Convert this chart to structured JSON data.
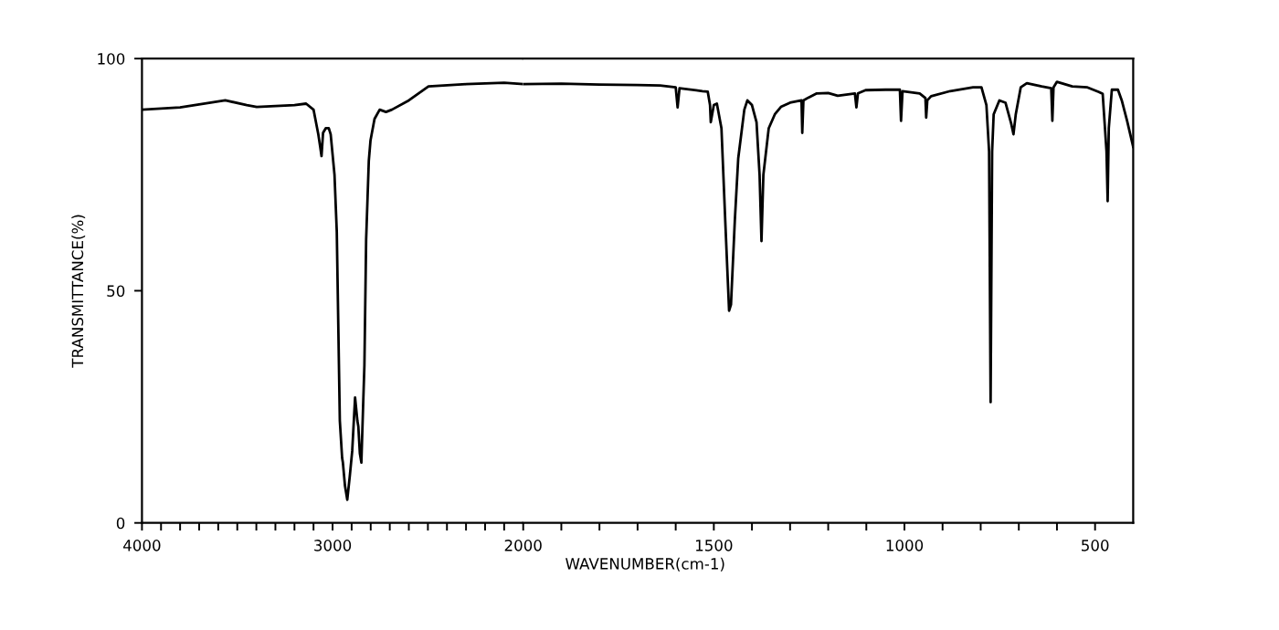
{
  "chart_data": [
    {
      "type": "line",
      "ylabel": "TRANSMITTANCE(%)",
      "xlim": [
        4000,
        2000
      ],
      "ylim": [
        0,
        100
      ],
      "yticks": [
        0,
        50,
        100
      ],
      "xticks": [
        4000,
        {
          "value": 3900,
          "label": null
        },
        {
          "value": 3800,
          "label": null
        },
        {
          "value": 3700,
          "label": null
        },
        {
          "value": 3600,
          "label": null
        },
        {
          "value": 3500,
          "label": null
        },
        {
          "value": 3400,
          "label": null
        },
        {
          "value": 3300,
          "label": null
        },
        {
          "value": 3200,
          "label": null
        },
        {
          "value": 3100,
          "label": null
        },
        3000,
        {
          "value": 2900,
          "label": null
        },
        {
          "value": 2800,
          "label": null
        },
        {
          "value": 2700,
          "label": null
        },
        {
          "value": 2600,
          "label": null
        },
        {
          "value": 2500,
          "label": null
        },
        {
          "value": 2400,
          "label": null
        },
        {
          "value": 2300,
          "label": null
        },
        {
          "value": 2200,
          "label": null
        },
        {
          "value": 2100,
          "label": null
        }
      ],
      "grid": false,
      "marker": "none",
      "line_style": "solid",
      "series": [
        {
          "color": "#000000",
          "x": [
            4000,
            3800,
            3563,
            3450,
            3398,
            3200,
            3139,
            3100,
            3075,
            3065,
            3058,
            3050,
            3036,
            3020,
            3010,
            2990,
            2978,
            2962,
            2950,
            2946,
            2935,
            2923,
            2910,
            2897,
            2882,
            2870,
            2865,
            2857,
            2849,
            2840,
            2833,
            2824,
            2810,
            2801,
            2780,
            2753,
            2720,
            2689,
            2600,
            2497,
            2300,
            2100,
            2000
          ],
          "values": [
            89,
            89.5,
            91,
            90,
            89.6,
            90,
            90.3,
            89,
            83.7,
            81,
            79,
            84,
            85,
            85,
            83.7,
            75,
            62.7,
            22,
            14,
            13,
            8,
            5,
            10,
            15.5,
            27,
            22,
            20.8,
            15,
            13,
            25,
            34,
            61,
            78,
            82.4,
            87,
            89,
            88.5,
            89,
            91,
            94,
            94.5,
            94.8,
            94.5
          ]
        }
      ]
    },
    {
      "type": "line",
      "xlabel": "WAVENUMBER(cm-1)",
      "xlim": [
        2000,
        400
      ],
      "ylim": [
        0,
        100
      ],
      "tick_labels": "x",
      "xticks": [
        2000,
        {
          "value": 1900,
          "label": null
        },
        {
          "value": 1800,
          "label": null
        },
        {
          "value": 1700,
          "label": null
        },
        {
          "value": 1600,
          "label": null
        },
        1500,
        {
          "value": 1400,
          "label": null
        },
        {
          "value": 1300,
          "label": null
        },
        {
          "value": 1200,
          "label": null
        },
        {
          "value": 1100,
          "label": null
        },
        1000,
        {
          "value": 900,
          "label": null
        },
        {
          "value": 800,
          "label": null
        },
        {
          "value": 700,
          "label": null
        },
        {
          "value": 600,
          "label": null
        },
        500
      ],
      "grid": false,
      "marker": "none",
      "line_style": "solid",
      "series": [
        {
          "color": "#000000",
          "x": [
            2000,
            1900,
            1800,
            1700,
            1641,
            1600,
            1595,
            1590,
            1530,
            1516,
            1510,
            1508,
            1500,
            1492,
            1480,
            1470,
            1460,
            1455,
            1445,
            1436,
            1420,
            1412,
            1400,
            1388,
            1380,
            1375,
            1370,
            1356,
            1340,
            1324,
            1300,
            1270,
            1268,
            1265,
            1252,
            1230,
            1200,
            1175,
            1130,
            1126,
            1122,
            1102,
            1050,
            1012,
            1009,
            1005,
            960,
            945,
            943,
            940,
            930,
            880,
            820,
            798,
            785,
            778,
            774,
            770,
            766,
            751,
            735,
            720,
            714,
            708,
            695,
            679,
            640,
            615,
            612,
            609,
            600,
            560,
            520,
            490,
            480,
            470,
            467,
            464,
            456,
            440,
            430,
            416,
            400
          ],
          "values": [
            94.5,
            94.6,
            94.4,
            94.3,
            94.2,
            93.8,
            89.5,
            93.6,
            93,
            92.9,
            90,
            86.3,
            90,
            90.3,
            85,
            65,
            45.7,
            47,
            65,
            78.5,
            89,
            91,
            90,
            86.3,
            75,
            60.7,
            75,
            85,
            88,
            89.6,
            90.5,
            91,
            84,
            91,
            91.6,
            92.5,
            92.6,
            92,
            92.5,
            89.5,
            92.5,
            93.2,
            93.3,
            93.3,
            86.6,
            93,
            92.5,
            91.5,
            87.3,
            91,
            91.9,
            93,
            93.8,
            93.8,
            90,
            80,
            26,
            80,
            88,
            91,
            90.5,
            86,
            83.7,
            88,
            93.8,
            94.7,
            94,
            93.6,
            86.6,
            93.8,
            95,
            94,
            93.8,
            92.8,
            92.4,
            80,
            69.3,
            85,
            93.3,
            93.3,
            91,
            86.6,
            81
          ]
        }
      ]
    }
  ]
}
